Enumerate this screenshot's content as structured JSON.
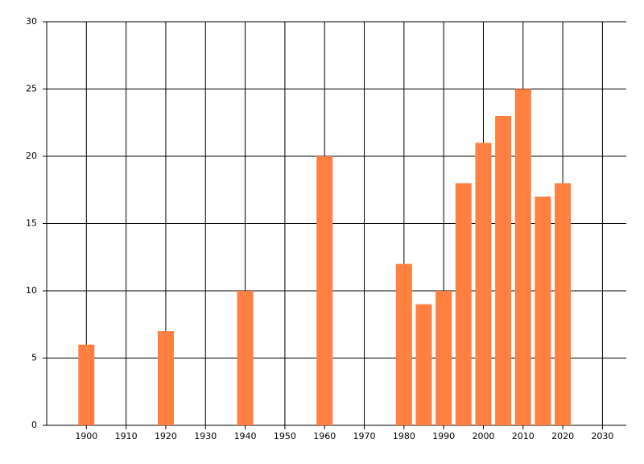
{
  "chart_data": {
    "type": "bar",
    "x": [
      1900,
      1920,
      1940,
      1960,
      1980,
      1985,
      1990,
      1995,
      2000,
      2005,
      2010,
      2015,
      2020
    ],
    "values": [
      6,
      7,
      10,
      20,
      12,
      9,
      10,
      18,
      21,
      23,
      25,
      17,
      18
    ],
    "color": "#ff8040",
    "xlim": [
      1890,
      2036
    ],
    "xticks": [
      1900,
      1910,
      1920,
      1930,
      1940,
      1950,
      1960,
      1970,
      1980,
      1990,
      2000,
      2010,
      2020,
      2030
    ],
    "ylim": [
      0,
      30
    ],
    "yticks": [
      0,
      5,
      10,
      15,
      20,
      25,
      30
    ],
    "grid": true
  }
}
